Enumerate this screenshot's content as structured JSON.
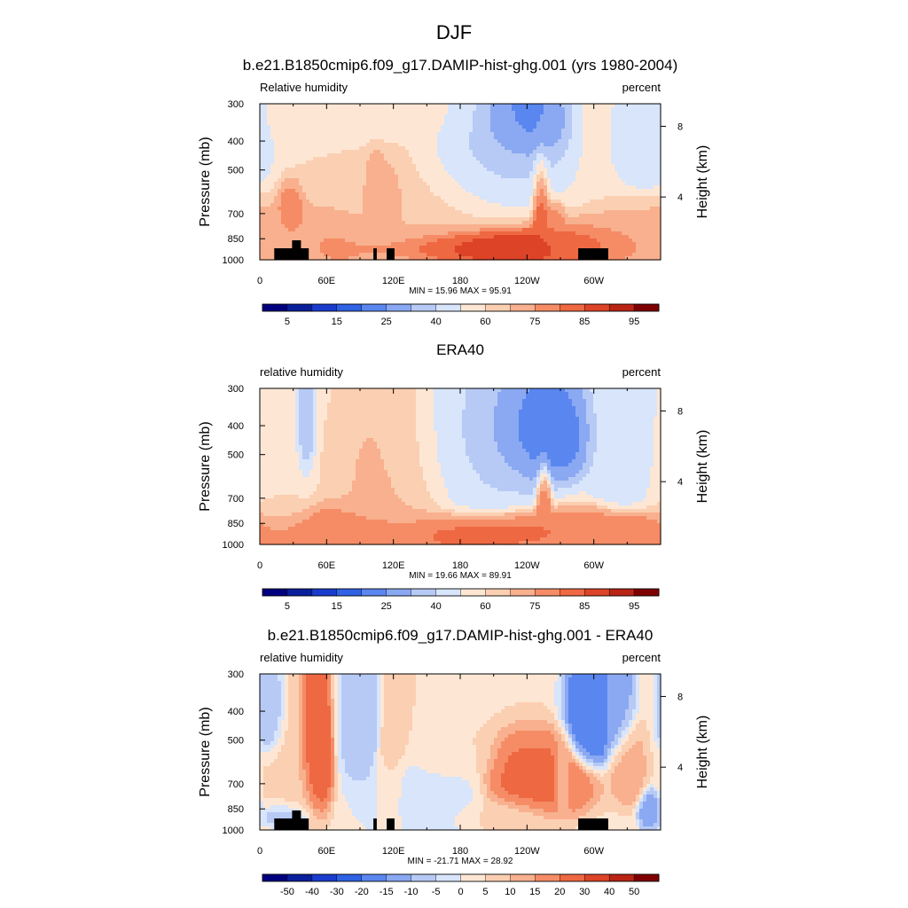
{
  "figure": {
    "title": "DJF"
  },
  "chart_data": [
    {
      "type": "contour",
      "title": "b.e21.B1850cmip6.f09_g17.DAMIP-hist-ghg.001 (yrs 1980-2004)",
      "left_label": "Relative humidity",
      "right_label": "percent",
      "ylabel": "Pressure (mb)",
      "y2label": "Height (km)",
      "yticks": [
        "300",
        "400",
        "500",
        "700",
        "850",
        "1000"
      ],
      "xticks": [
        "0",
        "60E",
        "120E",
        "180",
        "120W",
        "60W"
      ],
      "y2ticks": [
        "8",
        "4"
      ],
      "min_max": "MIN =  15.96  MAX =  95.91",
      "colorbar_labels": [
        "5",
        "15",
        "25",
        "40",
        "60",
        "75",
        "85",
        "95"
      ],
      "terrain": true,
      "range": [
        15.96,
        95.91
      ],
      "features": [
        {
          "lon": 0,
          "p": 900,
          "v": 70,
          "slon": 60,
          "sp": 140
        },
        {
          "lon": 60,
          "p": 900,
          "v": 78,
          "slon": 40,
          "sp": 120
        },
        {
          "lon": 180,
          "p": 900,
          "v": 90,
          "slon": 55,
          "sp": 80
        },
        {
          "lon": 210,
          "p": 900,
          "v": 92,
          "slon": 45,
          "sp": 90
        },
        {
          "lon": 300,
          "p": 905,
          "v": 85,
          "slon": 45,
          "sp": 90
        },
        {
          "lon": 28,
          "p": 710,
          "v": 80,
          "slon": 8,
          "sp": 90
        },
        {
          "lon": 105,
          "p": 650,
          "v": 76,
          "slon": 7,
          "sp": 160
        },
        {
          "lon": 118,
          "p": 680,
          "v": 74,
          "slon": 8,
          "sp": 140
        },
        {
          "lon": 252,
          "p": 720,
          "v": 86,
          "slon": 5,
          "sp": 170
        },
        {
          "lon": 262,
          "p": 780,
          "v": 80,
          "slon": 8,
          "sp": 90
        },
        {
          "lon": 150,
          "p": 700,
          "v": 66,
          "slon": 60,
          "sp": 250
        },
        {
          "lon": 230,
          "p": 340,
          "v": 20,
          "slon": 25,
          "sp": 90
        },
        {
          "lon": 200,
          "p": 480,
          "v": 34,
          "slon": 40,
          "sp": 170
        },
        {
          "lon": 345,
          "p": 380,
          "v": 40,
          "slon": 15,
          "sp": 100
        },
        {
          "lon": 100,
          "p": 320,
          "v": 55,
          "slon": 70,
          "sp": 70
        }
      ]
    },
    {
      "type": "contour",
      "title": "ERA40",
      "left_label": "relative humidity",
      "right_label": "percent",
      "ylabel": "Pressure (mb)",
      "y2label": "Height (km)",
      "yticks": [
        "300",
        "400",
        "500",
        "700",
        "850",
        "1000"
      ],
      "xticks": [
        "0",
        "60E",
        "120E",
        "180",
        "120W",
        "60W"
      ],
      "y2ticks": [
        "8",
        "4"
      ],
      "min_max": "MIN =  19.66  MAX =  89.91",
      "colorbar_labels": [
        "5",
        "15",
        "25",
        "40",
        "60",
        "75",
        "85",
        "95"
      ],
      "terrain": false,
      "range": [
        19.66,
        89.91
      ],
      "features": [
        {
          "lon": 60,
          "p": 900,
          "v": 80,
          "slon": 60,
          "sp": 100
        },
        {
          "lon": 180,
          "p": 910,
          "v": 82,
          "slon": 70,
          "sp": 90
        },
        {
          "lon": 310,
          "p": 910,
          "v": 80,
          "slon": 50,
          "sp": 90
        },
        {
          "lon": 40,
          "p": 430,
          "v": 28,
          "slon": 6,
          "sp": 120
        },
        {
          "lon": 240,
          "p": 430,
          "v": 20,
          "slon": 35,
          "sp": 120
        },
        {
          "lon": 190,
          "p": 500,
          "v": 40,
          "slon": 40,
          "sp": 200
        },
        {
          "lon": 330,
          "p": 450,
          "v": 44,
          "slon": 20,
          "sp": 200
        },
        {
          "lon": 125,
          "p": 600,
          "v": 68,
          "slon": 35,
          "sp": 250
        },
        {
          "lon": 20,
          "p": 600,
          "v": 60,
          "slon": 20,
          "sp": 250
        },
        {
          "lon": 255,
          "p": 760,
          "v": 80,
          "slon": 4,
          "sp": 150
        }
      ]
    },
    {
      "type": "contour",
      "title": "b.e21.B1850cmip6.f09_g17.DAMIP-hist-ghg.001 - ERA40",
      "left_label": "relative humidity",
      "right_label": "percent",
      "ylabel": "Pressure (mb)",
      "y2label": "Height (km)",
      "yticks": [
        "300",
        "400",
        "500",
        "700",
        "850",
        "1000"
      ],
      "xticks": [
        "0",
        "60E",
        "120E",
        "180",
        "120W",
        "60W"
      ],
      "y2ticks": [
        "8",
        "4"
      ],
      "min_max": "MIN = -21.71  MAX =  28.92",
      "colorbar_labels": [
        "-50",
        "-40",
        "-30",
        "-20",
        "-15",
        "-10",
        "-5",
        "0",
        "5",
        "10",
        "15",
        "20",
        "30",
        "40",
        "50"
      ],
      "terrain": true,
      "range": [
        -21.71,
        28.92
      ],
      "features": [
        {
          "lon": 48,
          "p": 560,
          "v": 28,
          "slon": 10,
          "sp": 190
        },
        {
          "lon": 30,
          "p": 680,
          "v": 6,
          "slon": 15,
          "sp": 250
        },
        {
          "lon": 10,
          "p": 400,
          "v": -10,
          "slon": 8,
          "sp": 90
        },
        {
          "lon": 90,
          "p": 450,
          "v": -7,
          "slon": 12,
          "sp": 160
        },
        {
          "lon": 100,
          "p": 420,
          "v": -10,
          "slon": 6,
          "sp": 100
        },
        {
          "lon": 120,
          "p": 470,
          "v": 10,
          "slon": 10,
          "sp": 150
        },
        {
          "lon": 118,
          "p": 750,
          "v": 6,
          "slon": 8,
          "sp": 200
        },
        {
          "lon": 150,
          "p": 760,
          "v": -4,
          "slon": 35,
          "sp": 180
        },
        {
          "lon": 165,
          "p": 560,
          "v": 6,
          "slon": 25,
          "sp": 100
        },
        {
          "lon": 245,
          "p": 700,
          "v": 22,
          "slon": 30,
          "sp": 130
        },
        {
          "lon": 300,
          "p": 400,
          "v": -20,
          "slon": 15,
          "sp": 120
        },
        {
          "lon": 320,
          "p": 380,
          "v": -12,
          "slon": 10,
          "sp": 120
        },
        {
          "lon": 272,
          "p": 700,
          "v": 10,
          "slon": 5,
          "sp": 130
        },
        {
          "lon": 330,
          "p": 620,
          "v": 12,
          "slon": 10,
          "sp": 120
        },
        {
          "lon": 350,
          "p": 870,
          "v": -12,
          "slon": 6,
          "sp": 80
        },
        {
          "lon": 25,
          "p": 900,
          "v": -12,
          "slon": 12,
          "sp": 60
        },
        {
          "lon": 215,
          "p": 900,
          "v": 6,
          "slon": 30,
          "sp": 80
        }
      ]
    }
  ]
}
